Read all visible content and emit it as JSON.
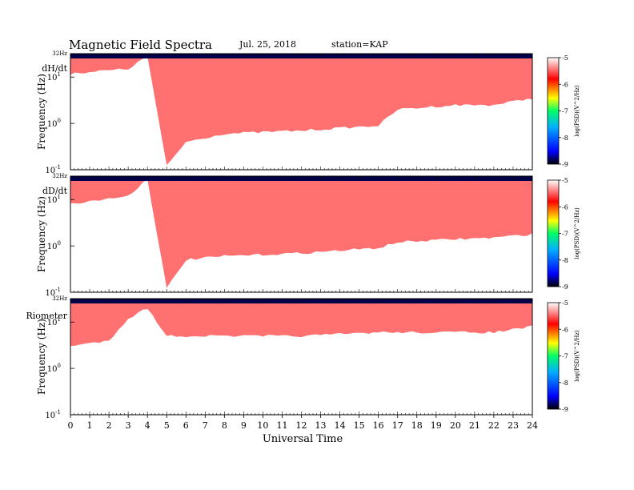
{
  "header": {
    "title": "Magnetic  Field  Spectra",
    "date": "Jul.  25, 2018",
    "station": "station=KAP"
  },
  "chart_data": {
    "type": "heatmap",
    "xlabel": "Universal Time",
    "x_ticks": [
      "0",
      "1",
      "2",
      "3",
      "4",
      "5",
      "6",
      "7",
      "8",
      "9",
      "10",
      "11",
      "12",
      "13",
      "14",
      "15",
      "16",
      "17",
      "18",
      "19",
      "20",
      "21",
      "22",
      "23",
      "24"
    ],
    "xlim": [
      0,
      24
    ],
    "panels": [
      {
        "name": "dH/dt",
        "ylabel": "Frequency  (Hz)",
        "scale": "log",
        "top_label": "32Hz",
        "y_ticks": [
          {
            "base": "10",
            "exp": "1",
            "value": 10
          },
          {
            "base": "10",
            "exp": "0",
            "value": 1
          },
          {
            "base": "10",
            "exp": "-1",
            "value": 0.1
          }
        ],
        "noise_floor_hz": [
          [
            0,
            12
          ],
          [
            3,
            15
          ],
          [
            4,
            28
          ],
          [
            5,
            0.12
          ],
          [
            6,
            0.4
          ],
          [
            8,
            0.6
          ],
          [
            12,
            0.7
          ],
          [
            16,
            0.9
          ],
          [
            17,
            2
          ],
          [
            20,
            2.5
          ],
          [
            22,
            2.5
          ],
          [
            24,
            3.5
          ]
        ]
      },
      {
        "name": "dD/dt",
        "ylabel": "Frequency  (Hz)",
        "scale": "log",
        "top_label": "32Hz",
        "y_ticks": [
          {
            "base": "10",
            "exp": "1",
            "value": 10
          },
          {
            "base": "10",
            "exp": "0",
            "value": 1
          },
          {
            "base": "10",
            "exp": "-1",
            "value": 0.1
          }
        ],
        "noise_floor_hz": [
          [
            0,
            8
          ],
          [
            3,
            12
          ],
          [
            4,
            28
          ],
          [
            5,
            0.12
          ],
          [
            6,
            0.5
          ],
          [
            8,
            0.6
          ],
          [
            12,
            0.7
          ],
          [
            16,
            0.9
          ],
          [
            17,
            1.2
          ],
          [
            20,
            1.4
          ],
          [
            22,
            1.5
          ],
          [
            24,
            1.8
          ]
        ]
      },
      {
        "name": "Riometer",
        "ylabel": "Frequency  (Hz)",
        "scale": "log",
        "top_label": "32Hz",
        "y_ticks": [
          {
            "base": "10",
            "exp": "1",
            "value": 10
          },
          {
            "base": "10",
            "exp": "0",
            "value": 1
          },
          {
            "base": "10",
            "exp": "-1",
            "value": 0.1
          }
        ],
        "noise_floor_hz": [
          [
            0,
            3
          ],
          [
            2,
            4
          ],
          [
            3,
            12
          ],
          [
            4,
            20
          ],
          [
            5,
            5
          ],
          [
            6,
            5
          ],
          [
            12,
            5
          ],
          [
            16,
            6
          ],
          [
            18,
            6
          ],
          [
            22,
            6
          ],
          [
            24,
            8
          ]
        ]
      }
    ],
    "colorbar": {
      "label": "log(PSD)(V^2/Hz)",
      "label_base": "log",
      "label_rest": "(PSD)(V^2/Hz)",
      "ticks": [
        "-5",
        "-6",
        "-7",
        "-8",
        "-9"
      ],
      "range": [
        -9,
        -5
      ],
      "colors": [
        "#000000",
        "#0000ff",
        "#00b0ff",
        "#00ff66",
        "#ffff00",
        "#ff0000",
        "#ffffff"
      ]
    }
  }
}
